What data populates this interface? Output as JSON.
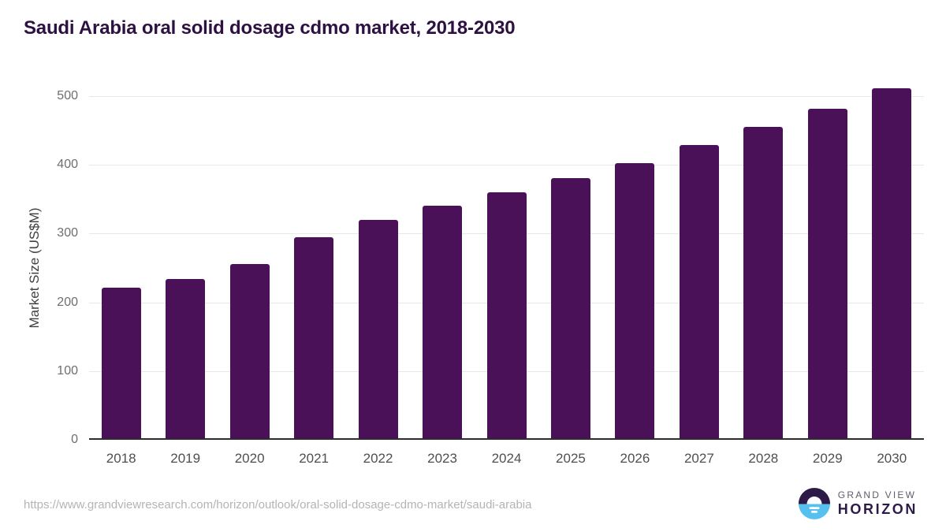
{
  "header": {
    "title": "Saudi Arabia oral solid dosage cdmo market, 2018-2030",
    "title_color": "#2d1142"
  },
  "chart_data": {
    "type": "bar",
    "title": "Saudi Arabia oral solid dosage cdmo market, 2018-2030",
    "categories": [
      "2018",
      "2019",
      "2020",
      "2021",
      "2022",
      "2023",
      "2024",
      "2025",
      "2026",
      "2027",
      "2028",
      "2029",
      "2030"
    ],
    "values": [
      221,
      234,
      256,
      295,
      320,
      341,
      360,
      381,
      403,
      429,
      455,
      482,
      512
    ],
    "xlabel": "",
    "ylabel": "Market Size (US$M)",
    "ylim": [
      0,
      500
    ],
    "yticks": [
      0,
      100,
      200,
      300,
      400,
      500
    ],
    "grid": "horizontal",
    "legend": "none",
    "bar_color": "#4a1158",
    "gridline_color": "#e8e8e8",
    "axis_line_color": "#2d2d2d"
  },
  "footer": {
    "source_url": "https://www.grandviewresearch.com/horizon/outlook/oral-solid-dosage-cdmo-market/saudi-arabia",
    "logo": {
      "line1": "GRAND VIEW",
      "line2": "HORIZON",
      "icon_top_color": "#2e1a47",
      "icon_bottom_color": "#56c1ee"
    }
  }
}
